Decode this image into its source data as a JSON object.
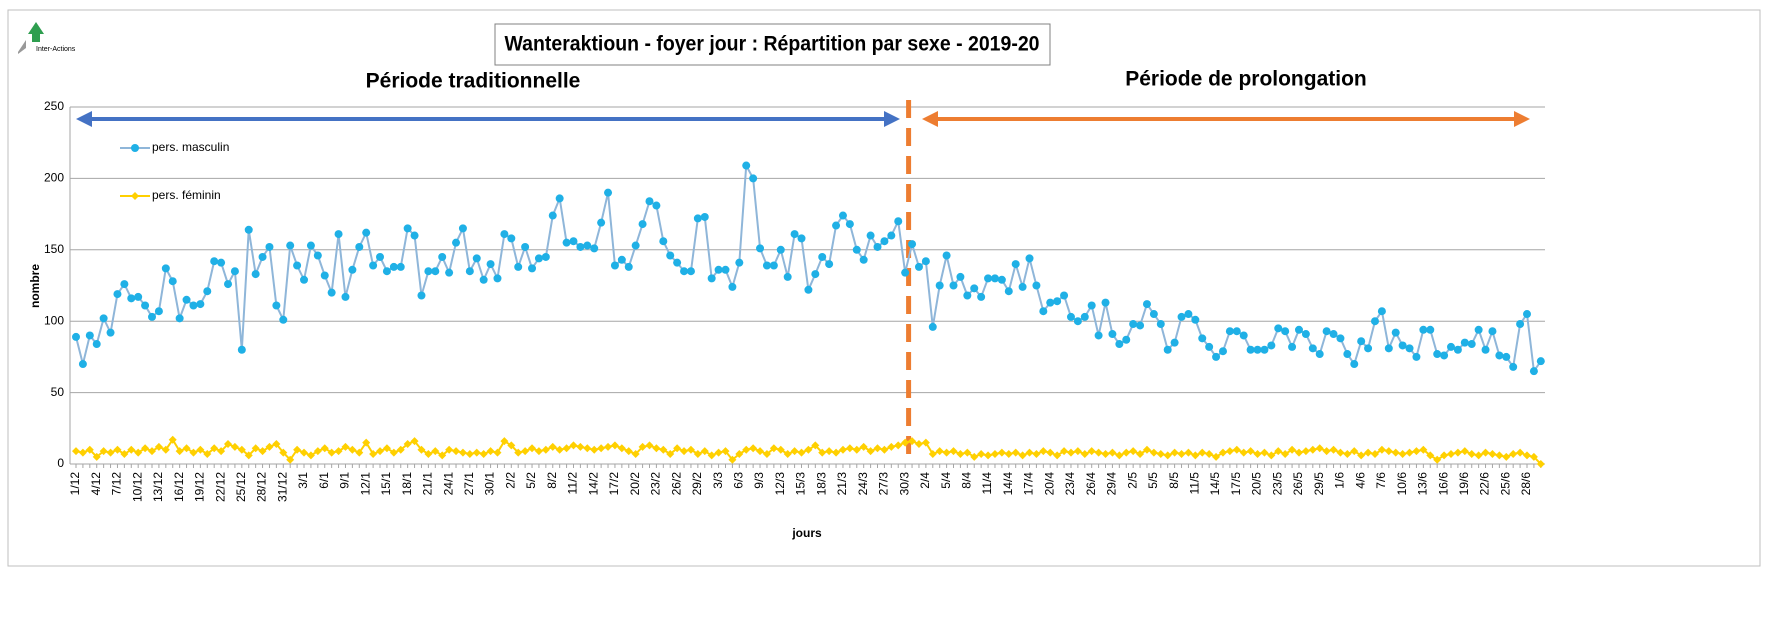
{
  "chart_data": {
    "type": "line",
    "title": "Wanteraktioun - foyer jour : Répartition par sexe - 2019-20",
    "logo": "Inter-Actions",
    "xlabel": "jours",
    "ylabel": "nombre",
    "annotations": [
      {
        "text": "Période traditionnelle",
        "color": "#4472c4"
      },
      {
        "text": "Période de prolongation",
        "color": "#ed7d31"
      }
    ],
    "ylim": [
      0,
      250
    ],
    "yticks": [
      0,
      50,
      100,
      150,
      200,
      250
    ],
    "grid": true,
    "categories": [
      "1/12",
      null,
      null,
      "4/12",
      null,
      null,
      "7/12",
      null,
      null,
      "10/12",
      null,
      null,
      "13/12",
      null,
      null,
      "16/12",
      null,
      null,
      "19/12",
      null,
      null,
      "22/12",
      null,
      null,
      "25/12",
      null,
      null,
      "28/12",
      null,
      null,
      "31/12",
      null,
      null,
      "3/1",
      null,
      null,
      "6/1",
      null,
      null,
      "9/1",
      null,
      null,
      "12/1",
      null,
      null,
      "15/1",
      null,
      null,
      "18/1",
      null,
      null,
      "21/1",
      null,
      null,
      "24/1",
      null,
      null,
      "27/1",
      null,
      null,
      "30/1",
      null,
      null,
      "2/2",
      null,
      null,
      "5/2",
      null,
      null,
      "8/2",
      null,
      null,
      "11/2",
      null,
      null,
      "14/2",
      null,
      null,
      "17/2",
      null,
      null,
      "20/2",
      null,
      null,
      "23/2",
      null,
      null,
      "26/2",
      null,
      null,
      "29/2",
      null,
      null,
      "3/3",
      null,
      null,
      "6/3",
      null,
      null,
      "9/3",
      null,
      null,
      "12/3",
      null,
      null,
      "15/3",
      null,
      null,
      "18/3",
      null,
      null,
      "21/3",
      null,
      null,
      "24/3",
      null,
      null,
      "27/3",
      null,
      null,
      "30/3",
      null,
      null,
      "2/4",
      null,
      null,
      "5/4",
      null,
      null,
      "8/4",
      null,
      null,
      "11/4",
      null,
      null,
      "14/4",
      null,
      null,
      "17/4",
      null,
      null,
      "20/4",
      null,
      null,
      "23/4",
      null,
      null,
      "26/4",
      null,
      null,
      "29/4",
      null,
      null,
      "2/5",
      null,
      null,
      "5/5",
      null,
      null,
      "8/5",
      null,
      null,
      "11/5",
      null,
      null,
      "14/5",
      null,
      null,
      "17/5",
      null,
      null,
      "20/5",
      null,
      null,
      "23/5",
      null,
      null,
      "26/5",
      null,
      null,
      "29/5",
      null,
      null,
      "1/6",
      null,
      null,
      "4/6",
      null,
      null,
      "7/6",
      null,
      null,
      "10/6",
      null,
      null,
      "13/6",
      null,
      null,
      "16/6",
      null,
      null,
      "19/6",
      null,
      null,
      "22/6",
      null,
      null,
      "25/6",
      null,
      null,
      "28/6",
      null,
      null
    ],
    "series": [
      {
        "name": "pers. masculin",
        "color": "#1fb0e6",
        "line_color": "#8fb6d9",
        "marker": "circle",
        "values": [
          89,
          70,
          90,
          84,
          102,
          92,
          119,
          126,
          116,
          117,
          111,
          103,
          107,
          137,
          128,
          102,
          115,
          111,
          112,
          121,
          142,
          141,
          126,
          135,
          80,
          164,
          133,
          145,
          152,
          111,
          101,
          153,
          139,
          129,
          153,
          146,
          132,
          120,
          161,
          117,
          136,
          152,
          162,
          139,
          145,
          135,
          138,
          138,
          165,
          160,
          118,
          135,
          135,
          145,
          134,
          155,
          165,
          135,
          144,
          129,
          140,
          130,
          161,
          158,
          138,
          152,
          137,
          144,
          145,
          174,
          186,
          155,
          156,
          152,
          153,
          151,
          169,
          190,
          139,
          143,
          138,
          153,
          168,
          184,
          181,
          156,
          146,
          141,
          135,
          135,
          172,
          173,
          130,
          136,
          136,
          124,
          141,
          209,
          200,
          151,
          139,
          139,
          150,
          131,
          161,
          158,
          122,
          133,
          145,
          140,
          167,
          174,
          168,
          150,
          143,
          160,
          152,
          156,
          160,
          170,
          134,
          154,
          138,
          142,
          96,
          125,
          146,
          125,
          131,
          118,
          123,
          117,
          130,
          130,
          129,
          121,
          140,
          124,
          144,
          125,
          107,
          113,
          114,
          118,
          103,
          100,
          103,
          111,
          90,
          113,
          91,
          84,
          87,
          98,
          97,
          112,
          105,
          98,
          80,
          85,
          103,
          105,
          101,
          88,
          82,
          75,
          79,
          93,
          93,
          90,
          80,
          80,
          80,
          83,
          95,
          93,
          82,
          94,
          91,
          81,
          77,
          93,
          91,
          88,
          77,
          70,
          86,
          81,
          100,
          107,
          81,
          92,
          83,
          81,
          75,
          94,
          94,
          77,
          76,
          82,
          80,
          85,
          84,
          94,
          80,
          93,
          76,
          75,
          68,
          98,
          105,
          65,
          72
        ]
      },
      {
        "name": "pers. féminin",
        "color": "#ffd000",
        "line_color": "#ffd000",
        "marker": "diamond",
        "values": [
          9,
          8,
          10,
          5,
          9,
          8,
          10,
          7,
          10,
          8,
          11,
          9,
          12,
          10,
          17,
          9,
          11,
          8,
          10,
          7,
          11,
          9,
          14,
          12,
          10,
          6,
          11,
          9,
          12,
          14,
          8,
          3,
          10,
          8,
          6,
          9,
          11,
          8,
          9,
          12,
          10,
          8,
          15,
          7,
          9,
          11,
          8,
          10,
          14,
          16,
          10,
          7,
          9,
          6,
          10,
          9,
          8,
          7,
          8,
          7,
          9,
          8,
          16,
          13,
          8,
          9,
          11,
          9,
          10,
          12,
          10,
          11,
          13,
          12,
          11,
          10,
          11,
          12,
          13,
          11,
          9,
          7,
          12,
          13,
          11,
          10,
          7,
          11,
          9,
          10,
          7,
          9,
          6,
          8,
          9,
          3,
          7,
          10,
          11,
          9,
          7,
          11,
          10,
          7,
          9,
          8,
          10,
          13,
          8,
          9,
          8,
          10,
          11,
          10,
          12,
          9,
          11,
          10,
          12,
          13,
          15,
          16,
          14,
          15,
          7,
          9,
          8,
          9,
          7,
          8,
          5,
          7,
          6,
          7,
          8,
          7,
          8,
          6,
          8,
          7,
          9,
          8,
          6,
          9,
          8,
          9,
          7,
          9,
          8,
          7,
          8,
          6,
          8,
          9,
          7,
          10,
          8,
          7,
          6,
          8,
          7,
          8,
          6,
          8,
          7,
          5,
          8,
          9,
          10,
          8,
          9,
          7,
          8,
          6,
          9,
          7,
          10,
          8,
          9,
          10,
          11,
          9,
          10,
          8,
          7,
          9,
          6,
          8,
          7,
          10,
          9,
          8,
          7,
          8,
          9,
          10,
          6,
          3,
          6,
          7,
          8,
          9,
          7,
          6,
          8,
          7,
          6,
          5,
          7,
          8,
          6,
          5,
          0
        ]
      }
    ]
  }
}
